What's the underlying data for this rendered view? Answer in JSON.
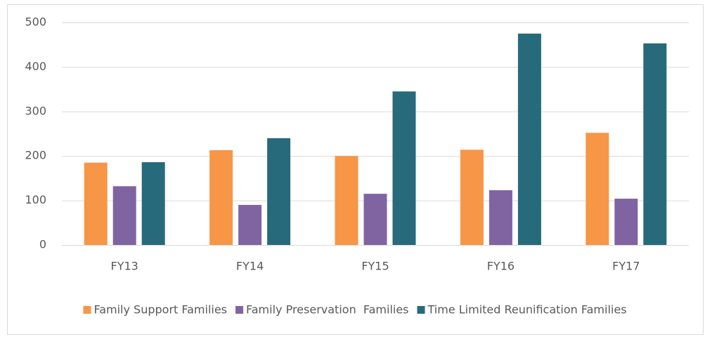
{
  "chart_data": {
    "type": "bar",
    "categories": [
      "FY13",
      "FY14",
      "FY15",
      "FY16",
      "FY17"
    ],
    "series": [
      {
        "name": "Family Support Families",
        "color": "#f79646",
        "values": [
          185,
          213,
          200,
          214,
          252
        ]
      },
      {
        "name": "Family Preservation  Families",
        "color": "#8064a2",
        "values": [
          132,
          90,
          115,
          123,
          104
        ]
      },
      {
        "name": "Time Limited Reunification Families",
        "color": "#276a7c",
        "values": [
          186,
          240,
          345,
          475,
          453
        ]
      }
    ],
    "ylim": [
      0,
      500
    ],
    "yticks": [
      0,
      100,
      200,
      300,
      400,
      500
    ],
    "grid": true,
    "legend": "bottom"
  }
}
